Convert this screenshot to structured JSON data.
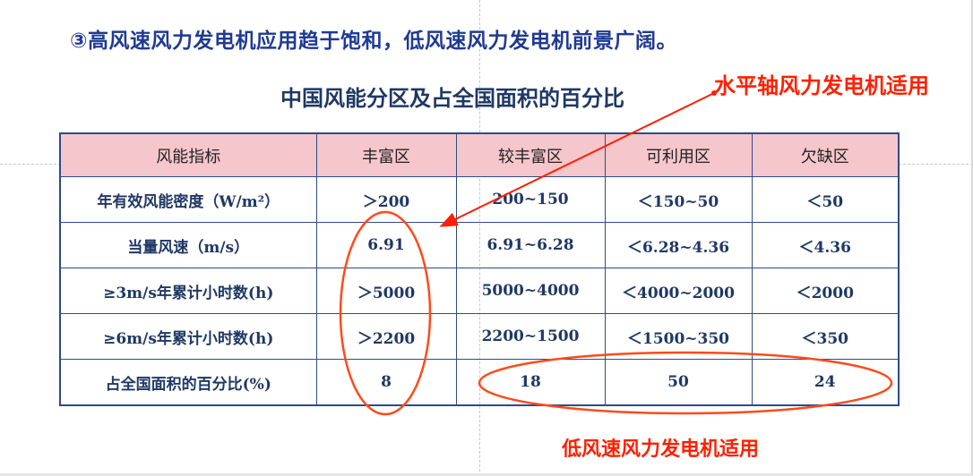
{
  "slide": {
    "heading": "③高风速风力发电机应用趋于饱和，低风速风力发电机前景广阔。",
    "table_title": "中国风能分区及占全国面积的百分比",
    "annotation_top": "水平轴风力发电机适用",
    "annotation_bottom": "低风速风力发电机适用"
  },
  "table": {
    "headers": [
      "风能指标",
      "丰富区",
      "较丰富区",
      "可利用区",
      "欠缺区"
    ],
    "rows": [
      [
        "年有效风能密度（W/m²）",
        "＞200",
        "200~150",
        "＜150~50",
        "＜50"
      ],
      [
        "当量风速（m/s）",
        "6.91",
        "6.91~6.28",
        "＜6.28~4.36",
        "＜4.36"
      ],
      [
        "≥3m/s年累计小时数(h)",
        "＞5000",
        "5000~4000",
        "＜4000~2000",
        "＜2000"
      ],
      [
        "≥6m/s年累计小时数(h)",
        "＞2200",
        "2200~1500",
        "＜1500~350",
        "＜350"
      ],
      [
        "占全国面积的百分比(%)",
        "8",
        "18",
        "50",
        "24"
      ]
    ]
  },
  "colors": {
    "heading": "#1f3a93",
    "table_border": "#2e4a8a",
    "header_fill": "#f5c6cb",
    "annotation": "#ff2000",
    "highlight_ellipse": "#ff4a1a"
  }
}
